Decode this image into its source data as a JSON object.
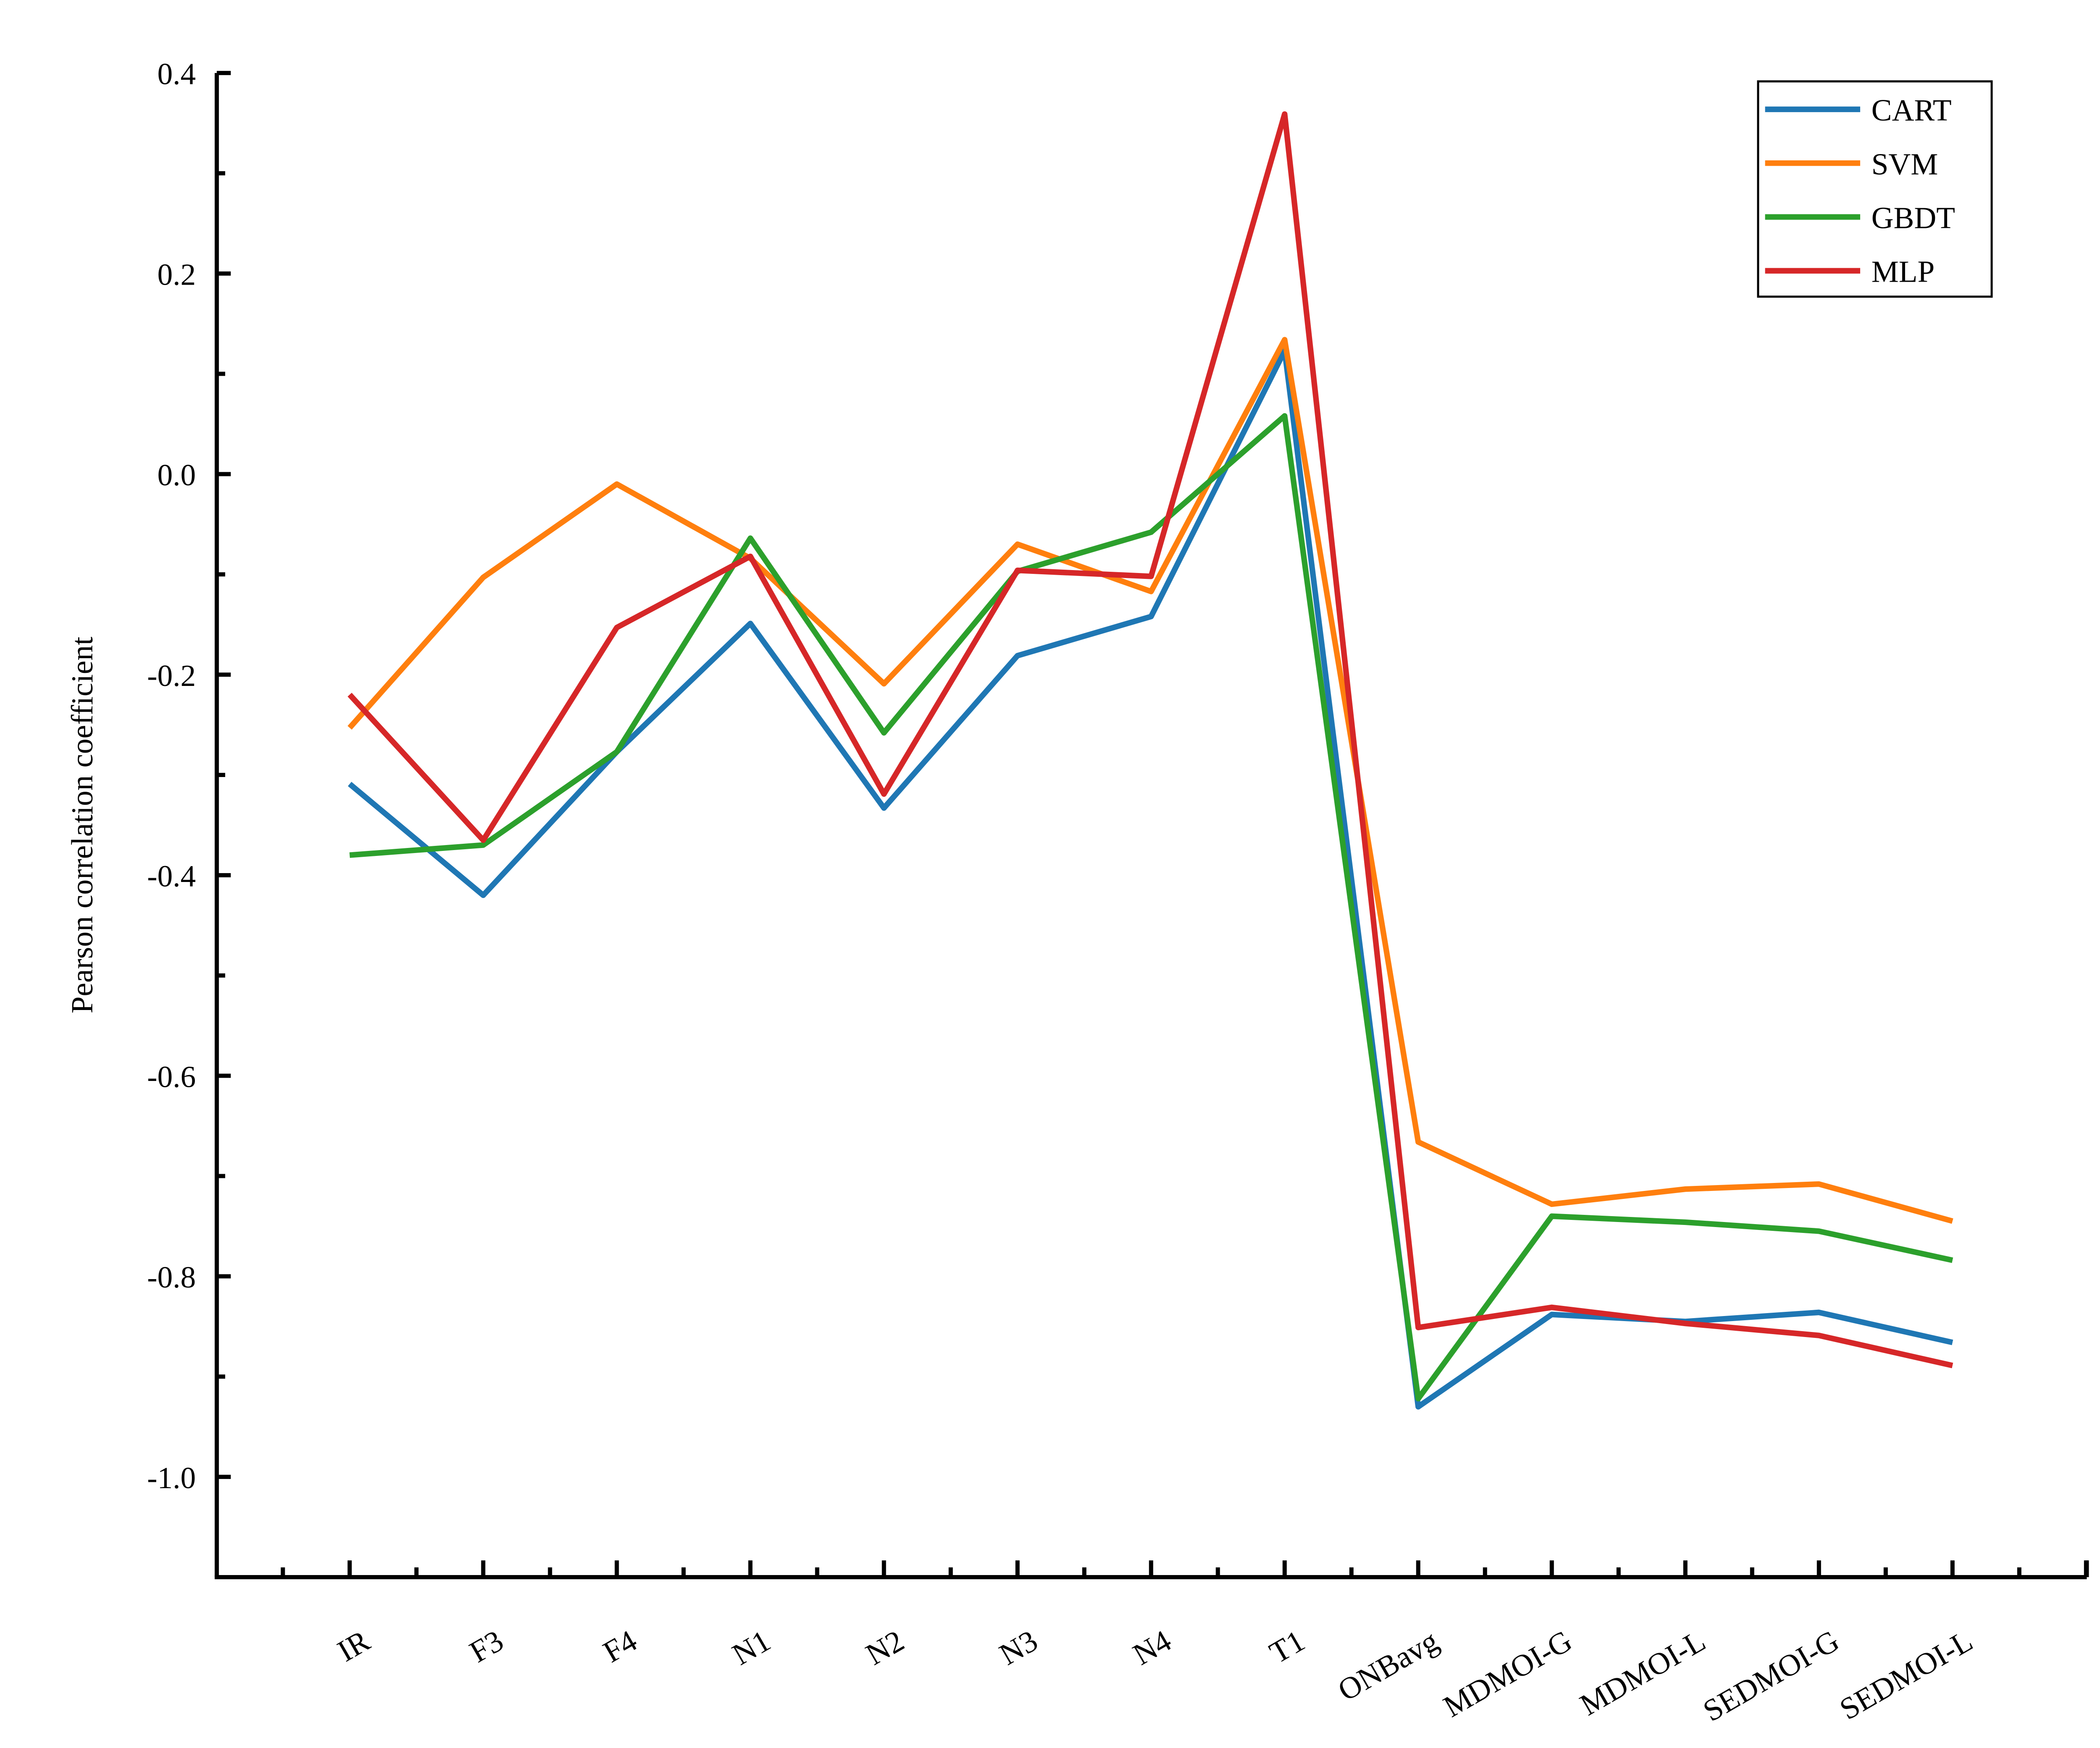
{
  "chart_data": {
    "type": "line",
    "title": "",
    "xlabel": "",
    "ylabel": "Pearson correlation coefficient",
    "ylim": [
      -1.1,
      0.4
    ],
    "yticks": [
      "0.4",
      "0.2",
      "0.0",
      "-0.2",
      "-0.4",
      "-0.6",
      "-0.8",
      "-1.0"
    ],
    "ytick_values": [
      0.4,
      0.2,
      0.0,
      -0.2,
      -0.4,
      -0.6,
      -0.8,
      -1.0
    ],
    "grid": false,
    "legend_position": "top-right",
    "categories": [
      "IR",
      "F3",
      "F4",
      "N1",
      "N2",
      "N3",
      "N4",
      "T1",
      "ONBavg",
      "MDMOI-G",
      "MDMOI-L",
      "SEDMOI-G",
      "SEDMOI-L"
    ],
    "series": [
      {
        "name": "CART",
        "color": "#1f77b4",
        "values": [
          -0.309,
          -0.42,
          -0.277,
          -0.149,
          -0.333,
          -0.181,
          -0.142,
          0.123,
          -0.93,
          -0.838,
          -0.845,
          -0.836,
          -0.866
        ]
      },
      {
        "name": "SVM",
        "color": "#ff7f0e",
        "values": [
          -0.253,
          -0.103,
          -0.01,
          -0.084,
          -0.209,
          -0.07,
          -0.117,
          0.134,
          -0.666,
          -0.728,
          -0.713,
          -0.708,
          -0.745
        ]
      },
      {
        "name": "GBDT",
        "color": "#2ca02c",
        "values": [
          -0.38,
          -0.37,
          -0.277,
          -0.064,
          -0.258,
          -0.097,
          -0.058,
          0.058,
          -0.922,
          -0.74,
          -0.746,
          -0.755,
          -0.784
        ]
      },
      {
        "name": "MLP",
        "color": "#d62728",
        "values": [
          -0.22,
          -0.365,
          -0.153,
          -0.082,
          -0.319,
          -0.096,
          -0.102,
          0.359,
          -0.851,
          -0.831,
          -0.847,
          -0.859,
          -0.889
        ]
      }
    ]
  }
}
